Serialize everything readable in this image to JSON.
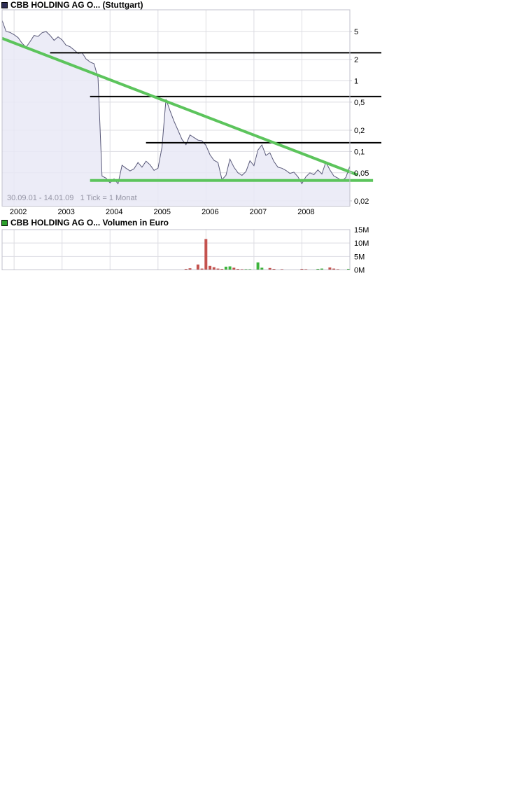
{
  "colors": {
    "price_line": "#585878",
    "price_fill": "#e9e9f6",
    "annotation_green": "#5cc45c",
    "volume_up": "#3cb43c",
    "volume_down": "#c4524e",
    "annotation_black": "#000000",
    "grid": "#dcdce2",
    "border": "#c2c2cc",
    "axis_text": "#000000",
    "note_text": "#9595a5"
  },
  "chart_data": [
    {
      "type": "line",
      "scale": "log",
      "title": "CBB HOLDING AG O... (Stuttgart)",
      "marker_color": "#2e2e55",
      "range_note": "30.09.01 - 14.01.09   1 Tick = 1 Monat",
      "start_month": "2001-10",
      "tick_interval": "1 Monat",
      "x_ticks": [
        "2002",
        "2003",
        "2004",
        "2005",
        "2006",
        "2007",
        "2008"
      ],
      "y_ticks": [
        {
          "v": 5,
          "label": "5"
        },
        {
          "v": 2,
          "label": "2"
        },
        {
          "v": 1,
          "label": "1"
        },
        {
          "v": 0.5,
          "label": "0,5"
        },
        {
          "v": 0.2,
          "label": "0,2"
        },
        {
          "v": 0.1,
          "label": "0,1"
        },
        {
          "v": 0.05,
          "label": "0,05"
        },
        {
          "v": 0.02,
          "label": "0,02"
        }
      ],
      "ylim": [
        0.02,
        10
      ],
      "values": [
        7.2,
        5.0,
        4.85,
        4.5,
        4.1,
        3.4,
        3.0,
        3.6,
        4.4,
        4.25,
        4.8,
        5.0,
        4.4,
        3.75,
        4.2,
        3.8,
        3.2,
        3.05,
        2.75,
        2.45,
        2.5,
        2.05,
        1.85,
        1.75,
        1.1,
        0.045,
        0.042,
        0.036,
        0.041,
        0.035,
        0.064,
        0.058,
        0.053,
        0.057,
        0.07,
        0.06,
        0.073,
        0.065,
        0.054,
        0.058,
        0.115,
        0.55,
        0.38,
        0.27,
        0.2,
        0.148,
        0.125,
        0.172,
        0.158,
        0.145,
        0.142,
        0.122,
        0.09,
        0.075,
        0.07,
        0.04,
        0.046,
        0.078,
        0.06,
        0.05,
        0.046,
        0.052,
        0.074,
        0.063,
        0.105,
        0.124,
        0.088,
        0.096,
        0.072,
        0.06,
        0.058,
        0.054,
        0.049,
        0.051,
        0.044,
        0.035,
        0.044,
        0.05,
        0.047,
        0.055,
        0.048,
        0.071,
        0.055,
        0.045,
        0.042,
        0.038,
        0.043,
        0.062
      ],
      "annotations": {
        "resistance_lines": [
          {
            "value": 2.5,
            "from_month": 12
          },
          {
            "value": 0.6,
            "from_month": 22
          },
          {
            "value": 0.133,
            "from_month": 36
          }
        ],
        "trend_line": {
          "from_month": 0,
          "from_value": 4.0,
          "to_month": 89,
          "to_value": 0.0465
        },
        "support_line": {
          "value": 0.039,
          "from_month": 22,
          "to_month": 92.8
        }
      }
    },
    {
      "type": "bar",
      "title": "CBB HOLDING AG O... Volumen in Euro",
      "marker_color": "#2ca02c",
      "y_ticks": [
        {
          "v": 15,
          "label": "15M"
        },
        {
          "v": 10,
          "label": "10M"
        },
        {
          "v": 5,
          "label": "5M"
        },
        {
          "v": 0,
          "label": "0M"
        }
      ],
      "ylim": [
        0,
        15
      ],
      "bars": [
        {
          "month": 46,
          "value": 0.4,
          "color": "down"
        },
        {
          "month": 47,
          "value": 0.6,
          "color": "down"
        },
        {
          "month": 49,
          "value": 2.0,
          "color": "down"
        },
        {
          "month": 50,
          "value": 0.5,
          "color": "down"
        },
        {
          "month": 51,
          "value": 11.5,
          "color": "down"
        },
        {
          "month": 52,
          "value": 1.5,
          "color": "down"
        },
        {
          "month": 53,
          "value": 1.0,
          "color": "down"
        },
        {
          "month": 54,
          "value": 0.5,
          "color": "down"
        },
        {
          "month": 55,
          "value": 0.4,
          "color": "down"
        },
        {
          "month": 56,
          "value": 1.2,
          "color": "up"
        },
        {
          "month": 57,
          "value": 1.3,
          "color": "up"
        },
        {
          "month": 58,
          "value": 0.8,
          "color": "down"
        },
        {
          "month": 59,
          "value": 0.4,
          "color": "down"
        },
        {
          "month": 60,
          "value": 0.3,
          "color": "down"
        },
        {
          "month": 61,
          "value": 0.3,
          "color": "up"
        },
        {
          "month": 62,
          "value": 0.3,
          "color": "up"
        },
        {
          "month": 64,
          "value": 2.8,
          "color": "up"
        },
        {
          "month": 65,
          "value": 0.8,
          "color": "up"
        },
        {
          "month": 67,
          "value": 0.7,
          "color": "down"
        },
        {
          "month": 68,
          "value": 0.4,
          "color": "down"
        },
        {
          "month": 70,
          "value": 0.3,
          "color": "down"
        },
        {
          "month": 75,
          "value": 0.4,
          "color": "down"
        },
        {
          "month": 76,
          "value": 0.3,
          "color": "down"
        },
        {
          "month": 79,
          "value": 0.4,
          "color": "up"
        },
        {
          "month": 80,
          "value": 0.5,
          "color": "up"
        },
        {
          "month": 82,
          "value": 0.9,
          "color": "down"
        },
        {
          "month": 83,
          "value": 0.5,
          "color": "down"
        },
        {
          "month": 84,
          "value": 0.3,
          "color": "down"
        },
        {
          "month": 87,
          "value": 0.4,
          "color": "up"
        }
      ]
    }
  ]
}
